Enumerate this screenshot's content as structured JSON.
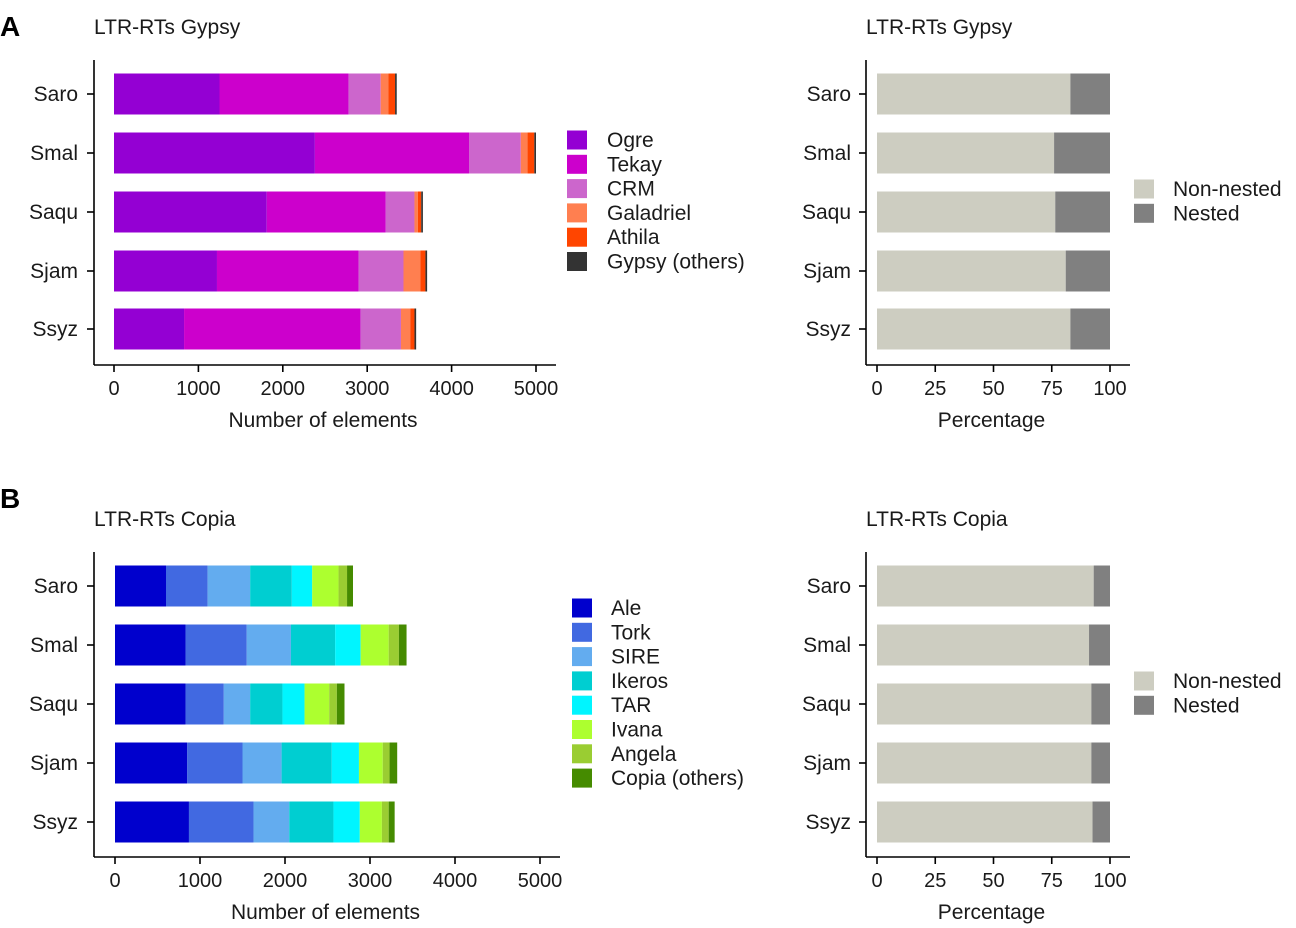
{
  "panels": [
    {
      "letter": "A"
    },
    {
      "letter": "B"
    }
  ],
  "chart_data": [
    {
      "type": "bar",
      "orientation": "horizontal",
      "stacked": true,
      "title": "LTR-RTs Gypsy",
      "xlabel": "Number of elements",
      "ylabel": "",
      "xlim": [
        0,
        5000
      ],
      "xticks": [
        0,
        1000,
        2000,
        3000,
        4000,
        5000
      ],
      "categories": [
        "Saro",
        "Smal",
        "Saqu",
        "Sjam",
        "Ssyz"
      ],
      "series": [
        {
          "name": "Ogre",
          "color": "#9400d3",
          "values": [
            1250,
            2380,
            1810,
            1220,
            830
          ]
        },
        {
          "name": "Tekay",
          "color": "#cc00cc",
          "values": [
            1530,
            1830,
            1410,
            1680,
            2090
          ]
        },
        {
          "name": "CRM",
          "color": "#cc66cc",
          "values": [
            380,
            610,
            340,
            530,
            480
          ]
        },
        {
          "name": "Galadriel",
          "color": "#ff7f50",
          "values": [
            90,
            80,
            40,
            200,
            110
          ]
        },
        {
          "name": "Athila",
          "color": "#ff4500",
          "values": [
            80,
            80,
            40,
            60,
            50
          ]
        },
        {
          "name": "Gypsy (others)",
          "color": "#333333",
          "values": [
            20,
            20,
            20,
            20,
            20
          ]
        }
      ],
      "legend_position": "right"
    },
    {
      "type": "bar",
      "orientation": "horizontal",
      "stacked": true,
      "title": "LTR-RTs Gypsy",
      "xlabel": "Percentage",
      "ylabel": "",
      "xlim": [
        0,
        100
      ],
      "xticks": [
        0,
        25,
        50,
        75,
        100
      ],
      "categories": [
        "Saro",
        "Smal",
        "Saqu",
        "Sjam",
        "Ssyz"
      ],
      "series": [
        {
          "name": "Non-nested",
          "color": "#cdcdc1",
          "values": [
            83,
            76,
            76.5,
            81,
            83
          ]
        },
        {
          "name": "Nested",
          "color": "#808080",
          "values": [
            17,
            24,
            23.5,
            19,
            17
          ]
        }
      ],
      "legend_position": "right"
    },
    {
      "type": "bar",
      "orientation": "horizontal",
      "stacked": true,
      "title": "LTR-RTs Copia",
      "xlabel": "Number of elements",
      "ylabel": "",
      "xlim": [
        0,
        5000
      ],
      "xticks": [
        0,
        1000,
        2000,
        3000,
        4000,
        5000
      ],
      "categories": [
        "Saro",
        "Smal",
        "Saqu",
        "Sjam",
        "Ssyz"
      ],
      "series": [
        {
          "name": "Ale",
          "color": "#0000cd",
          "values": [
            600,
            830,
            830,
            850,
            870
          ]
        },
        {
          "name": "Tork",
          "color": "#4169e1",
          "values": [
            490,
            720,
            450,
            650,
            760
          ]
        },
        {
          "name": "SIRE",
          "color": "#63acef",
          "values": [
            500,
            520,
            310,
            460,
            420
          ]
        },
        {
          "name": "Ikeros",
          "color": "#00ced1",
          "values": [
            490,
            520,
            380,
            590,
            520
          ]
        },
        {
          "name": "TAR",
          "color": "#00f5ff",
          "values": [
            240,
            300,
            260,
            320,
            310
          ]
        },
        {
          "name": "Ivana",
          "color": "#adff2f",
          "values": [
            310,
            330,
            290,
            280,
            260
          ]
        },
        {
          "name": "Angela",
          "color": "#9acd32",
          "values": [
            100,
            120,
            90,
            80,
            80
          ]
        },
        {
          "name": "Copia (others)",
          "color": "#458b00",
          "values": [
            70,
            90,
            90,
            90,
            70
          ]
        }
      ],
      "legend_position": "right"
    },
    {
      "type": "bar",
      "orientation": "horizontal",
      "stacked": true,
      "title": "LTR-RTs Copia",
      "xlabel": "Percentage",
      "ylabel": "",
      "xlim": [
        0,
        100
      ],
      "xticks": [
        0,
        25,
        50,
        75,
        100
      ],
      "categories": [
        "Saro",
        "Smal",
        "Saqu",
        "Sjam",
        "Ssyz"
      ],
      "series": [
        {
          "name": "Non-nested",
          "color": "#cdcdc1",
          "values": [
            93,
            91,
            92,
            92,
            92.5
          ]
        },
        {
          "name": "Nested",
          "color": "#808080",
          "values": [
            7,
            9,
            8,
            8,
            7.5
          ]
        }
      ],
      "legend_position": "right"
    }
  ]
}
